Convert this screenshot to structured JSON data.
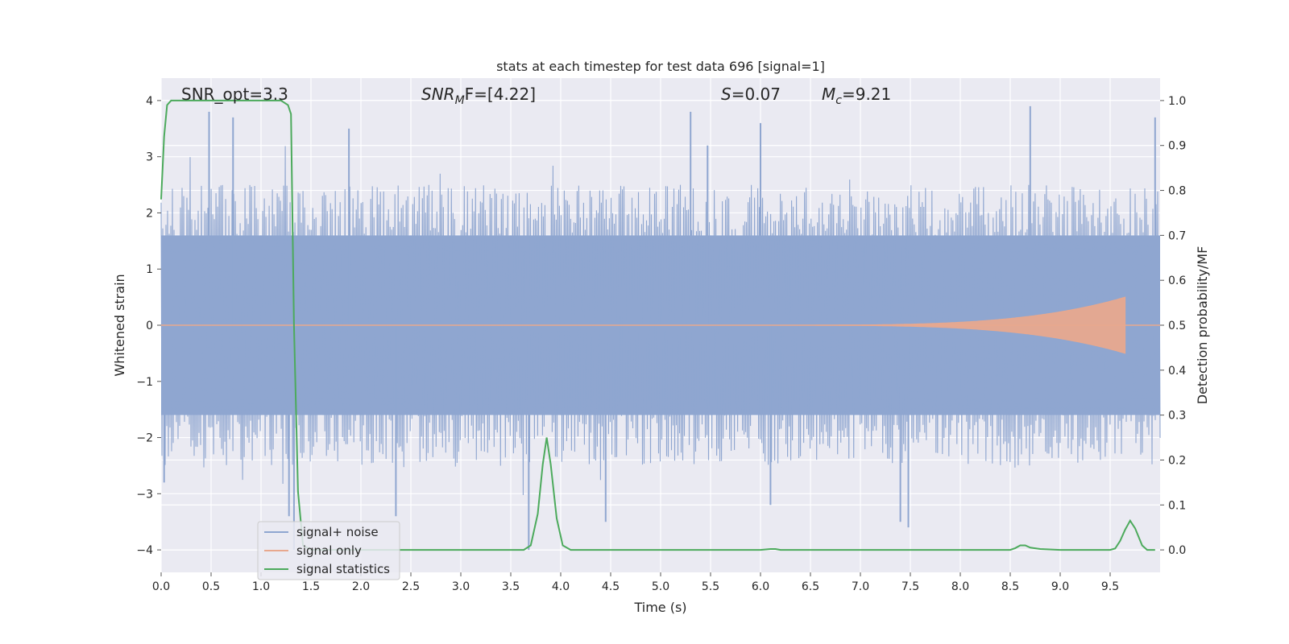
{
  "chart_data": {
    "type": "line",
    "title": "stats at each timestep for test data 696 [signal=1]",
    "xlabel": "Time (s)",
    "ylabel_left": "Whitened strain",
    "ylabel_right": "Detection probability/MF",
    "xlim": [
      0.0,
      10.0
    ],
    "ylim_left": [
      -4.4,
      4.4
    ],
    "ylim_right": [
      -0.05,
      1.05
    ],
    "x_ticks": [
      "0.0",
      "0.5",
      "1.0",
      "1.5",
      "2.0",
      "2.5",
      "3.0",
      "3.5",
      "4.0",
      "4.5",
      "5.0",
      "5.5",
      "6.0",
      "6.5",
      "7.0",
      "7.5",
      "8.0",
      "8.5",
      "9.0",
      "9.5"
    ],
    "y_left_ticks": [
      "4",
      "3",
      "2",
      "1",
      "0",
      "−1",
      "−2",
      "−3",
      "−4"
    ],
    "y_right_ticks": [
      "1.0",
      "0.9",
      "0.8",
      "0.7",
      "0.6",
      "0.5",
      "0.4",
      "0.3",
      "0.2",
      "0.1",
      "0.0"
    ],
    "grid": true,
    "legend_position": "lower-left",
    "annotations": {
      "snr_opt": "SNR_opt=3.3",
      "snr_mf_base": "SNR",
      "snr_mf_sub": "M",
      "snr_mf_rest": "F=[4.22]",
      "s_sym": "S",
      "s_val": "=0.07",
      "mc_sym": "M",
      "mc_sub": "c",
      "mc_val": "=9.21"
    },
    "series": [
      {
        "name": "signal+ noise",
        "axis": "left",
        "color": "#8fa6d0",
        "envelope_outer_abs": 1.6,
        "typical_abs_range": [
          1.3,
          2.5
        ],
        "peak_points": [
          [
            0.03,
            -2.8
          ],
          [
            0.48,
            3.8
          ],
          [
            0.72,
            3.7
          ],
          [
            1.28,
            -3.4
          ],
          [
            1.33,
            -4.0
          ],
          [
            1.88,
            3.5
          ],
          [
            2.35,
            -3.4
          ],
          [
            3.68,
            -4.0
          ],
          [
            4.45,
            -3.5
          ],
          [
            5.3,
            3.8
          ],
          [
            5.47,
            3.2
          ],
          [
            6.0,
            3.6
          ],
          [
            6.1,
            -3.2
          ],
          [
            7.4,
            -3.5
          ],
          [
            7.48,
            -3.6
          ],
          [
            8.7,
            3.9
          ],
          [
            9.95,
            3.7
          ]
        ]
      },
      {
        "name": "signal only",
        "axis": "left",
        "color": "#e8a88e",
        "chirp_start": 5.8,
        "chirp_end": 9.65,
        "max_amplitude": 0.5
      },
      {
        "name": "signal statistics",
        "axis": "right",
        "color": "#4caa5c",
        "x": [
          0.0,
          0.03,
          0.06,
          0.1,
          0.5,
          1.0,
          1.2,
          1.27,
          1.3,
          1.33,
          1.37,
          1.42,
          1.5,
          2.0,
          2.5,
          3.0,
          3.5,
          3.63,
          3.7,
          3.77,
          3.82,
          3.86,
          3.9,
          3.96,
          4.02,
          4.1,
          4.5,
          5.0,
          5.5,
          6.0,
          6.1,
          6.15,
          6.2,
          6.5,
          7.0,
          7.5,
          8.0,
          8.5,
          8.55,
          8.6,
          8.65,
          8.7,
          8.8,
          9.0,
          9.5,
          9.55,
          9.6,
          9.65,
          9.7,
          9.75,
          9.82,
          9.87,
          9.95
        ],
        "y": [
          0.78,
          0.92,
          0.99,
          1.0,
          1.0,
          1.0,
          1.0,
          0.99,
          0.97,
          0.5,
          0.13,
          0.01,
          0.0,
          0.0,
          0.0,
          0.0,
          0.0,
          0.0,
          0.01,
          0.08,
          0.19,
          0.25,
          0.19,
          0.07,
          0.01,
          0.0,
          0.0,
          0.0,
          0.0,
          0.0,
          0.002,
          0.002,
          0.0,
          0.0,
          0.0,
          0.0,
          0.0,
          0.0,
          0.004,
          0.01,
          0.01,
          0.005,
          0.002,
          0.0,
          0.0,
          0.003,
          0.02,
          0.045,
          0.065,
          0.048,
          0.01,
          0.0,
          0.0
        ]
      }
    ]
  }
}
